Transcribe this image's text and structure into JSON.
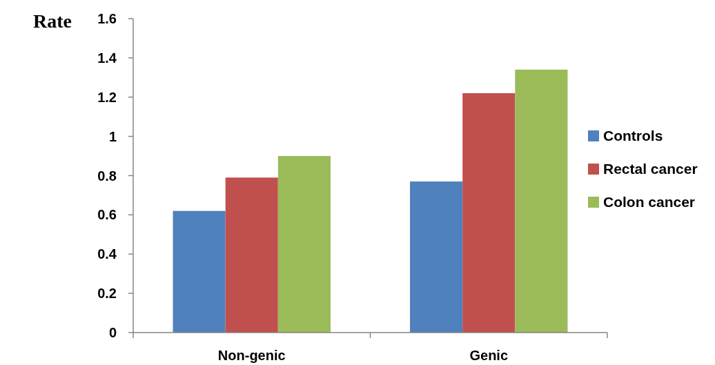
{
  "chart_data": {
    "type": "bar",
    "ylabel": "Rate",
    "categories": [
      "Non-genic",
      "Genic"
    ],
    "series": [
      {
        "name": "Controls",
        "color": "#4f81bd",
        "values": [
          0.62,
          0.77
        ]
      },
      {
        "name": "Rectal cancer",
        "color": "#c0504d",
        "values": [
          0.79,
          1.22
        ]
      },
      {
        "name": "Colon cancer",
        "color": "#9bbb59",
        "values": [
          0.9,
          1.34
        ]
      }
    ],
    "ylim": [
      0,
      1.6
    ],
    "yticks": [
      0,
      0.2,
      0.4,
      0.6,
      0.8,
      1,
      1.2,
      1.4,
      1.6
    ],
    "grid": false,
    "legend": "right"
  }
}
